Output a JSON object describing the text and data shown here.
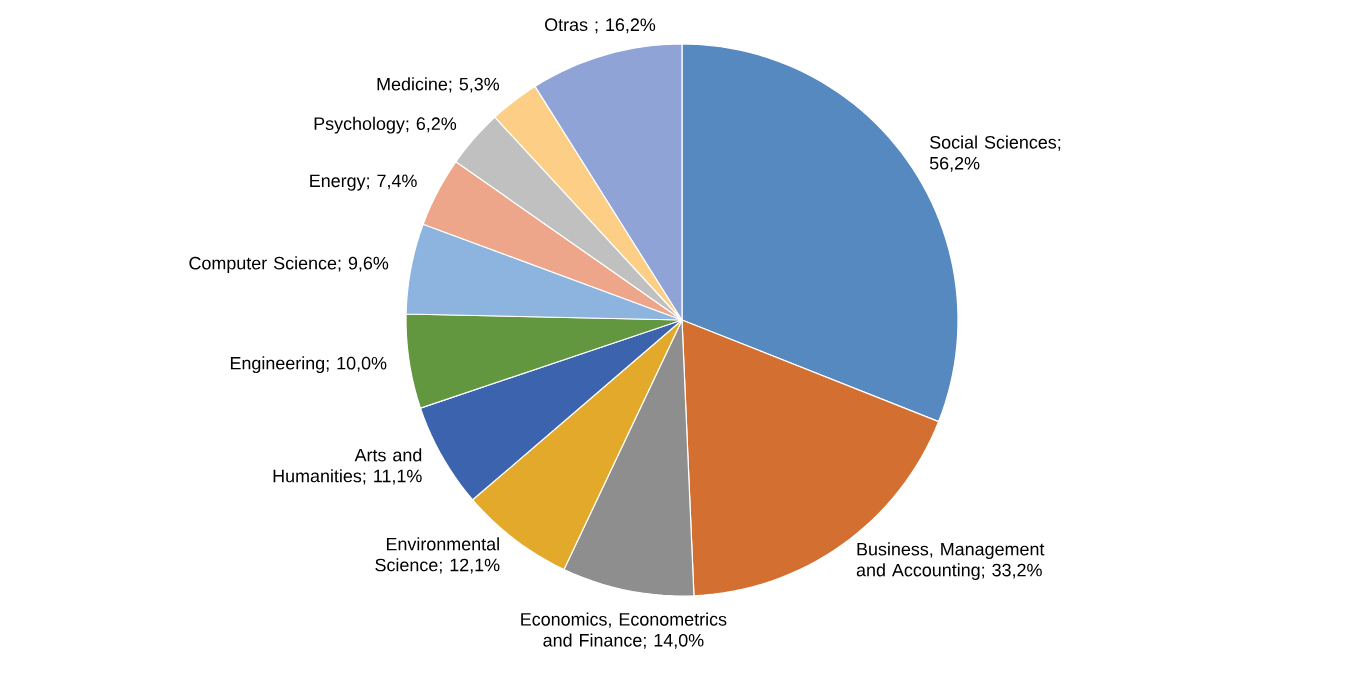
{
  "chart_data": {
    "type": "pie",
    "categories": [
      "Social Sciences",
      "Business, Management and Accounting",
      "Economics, Econometrics and Finance",
      "Environmental Science",
      "Arts and Humanities",
      "Engineering",
      "Computer Science",
      "Energy",
      "Psychology",
      "Medicine",
      "Otras"
    ],
    "values": [
      56.2,
      33.2,
      14.0,
      12.1,
      11.1,
      10.0,
      9.6,
      7.4,
      6.2,
      5.3,
      16.2
    ],
    "value_labels": [
      "; 56,2%",
      "; 33,2%",
      "; 14,0%",
      "; 12,1%",
      "; 11,1%",
      "; 10,0%",
      "; 9,6%",
      "; 7,4%",
      "; 6,2%",
      "; 5,3%",
      " ; 16,2%"
    ],
    "colors": [
      "#5589c0",
      "#d36f30",
      "#8e8e8e",
      "#e2a92a",
      "#3c63ad",
      "#62973f",
      "#8db4df",
      "#eea68a",
      "#c0c0c0",
      "#fdcf86",
      "#8fa3d6"
    ]
  }
}
